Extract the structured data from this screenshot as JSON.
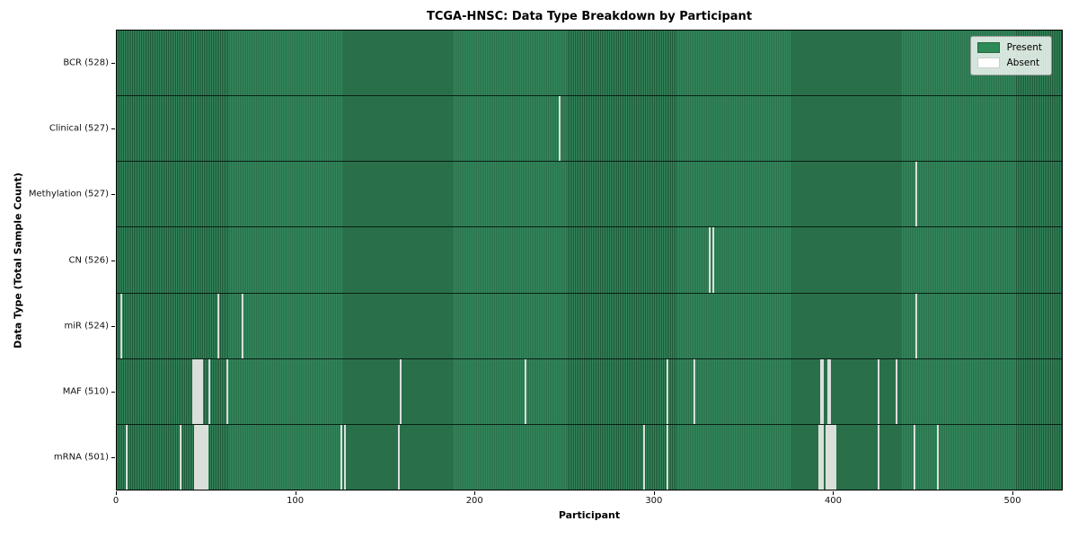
{
  "title": "TCGA-HNSC: Data Type Breakdown by Participant",
  "axes": {
    "xlabel": "Participant",
    "ylabel": "Data Type (Total Sample Count)"
  },
  "legend": {
    "present_label": "Present",
    "absent_label": "Absent"
  },
  "colors": {
    "present": "#2e8b57",
    "present_edge": "#1e5737",
    "absent": "#f7f7f7",
    "row_divider": "#0a0f0a",
    "legend_bg": "#eaf0ea"
  },
  "chart_data": {
    "type": "heatmap",
    "title": "TCGA-HNSC: Data Type Breakdown by Participant",
    "xlabel": "Participant",
    "ylabel": "Data Type (Total Sample Count)",
    "legend": [
      "Present",
      "Absent"
    ],
    "legend_position": "upper right",
    "n_participants": 528,
    "x_range": [
      0,
      528
    ],
    "x_ticks": [
      0,
      100,
      200,
      300,
      400,
      500
    ],
    "rows": [
      {
        "name": "BCR",
        "label": "BCR (528)",
        "total": 528,
        "absent": []
      },
      {
        "name": "Clinical",
        "label": "Clinical (527)",
        "total": 527,
        "absent": [
          247
        ]
      },
      {
        "name": "Methylation",
        "label": "Methylation (527)",
        "total": 527,
        "absent": [
          446
        ]
      },
      {
        "name": "CN",
        "label": "CN (526)",
        "total": 526,
        "absent": [
          331,
          333
        ]
      },
      {
        "name": "miR",
        "label": "miR (524)",
        "total": 524,
        "absent": [
          2,
          56,
          70,
          446
        ]
      },
      {
        "name": "MAF",
        "label": "MAF (510)",
        "total": 510,
        "absent": [
          42,
          43,
          44,
          45,
          46,
          47,
          51,
          61,
          158,
          228,
          307,
          322,
          393,
          394,
          397,
          398,
          425,
          435
        ]
      },
      {
        "name": "mRNA",
        "label": "mRNA (501)",
        "total": 501,
        "absent": [
          5,
          35,
          43,
          44,
          45,
          46,
          47,
          48,
          49,
          50,
          125,
          127,
          157,
          294,
          307,
          392,
          393,
          394,
          396,
          397,
          398,
          399,
          400,
          401,
          425,
          445,
          458
        ]
      }
    ]
  }
}
